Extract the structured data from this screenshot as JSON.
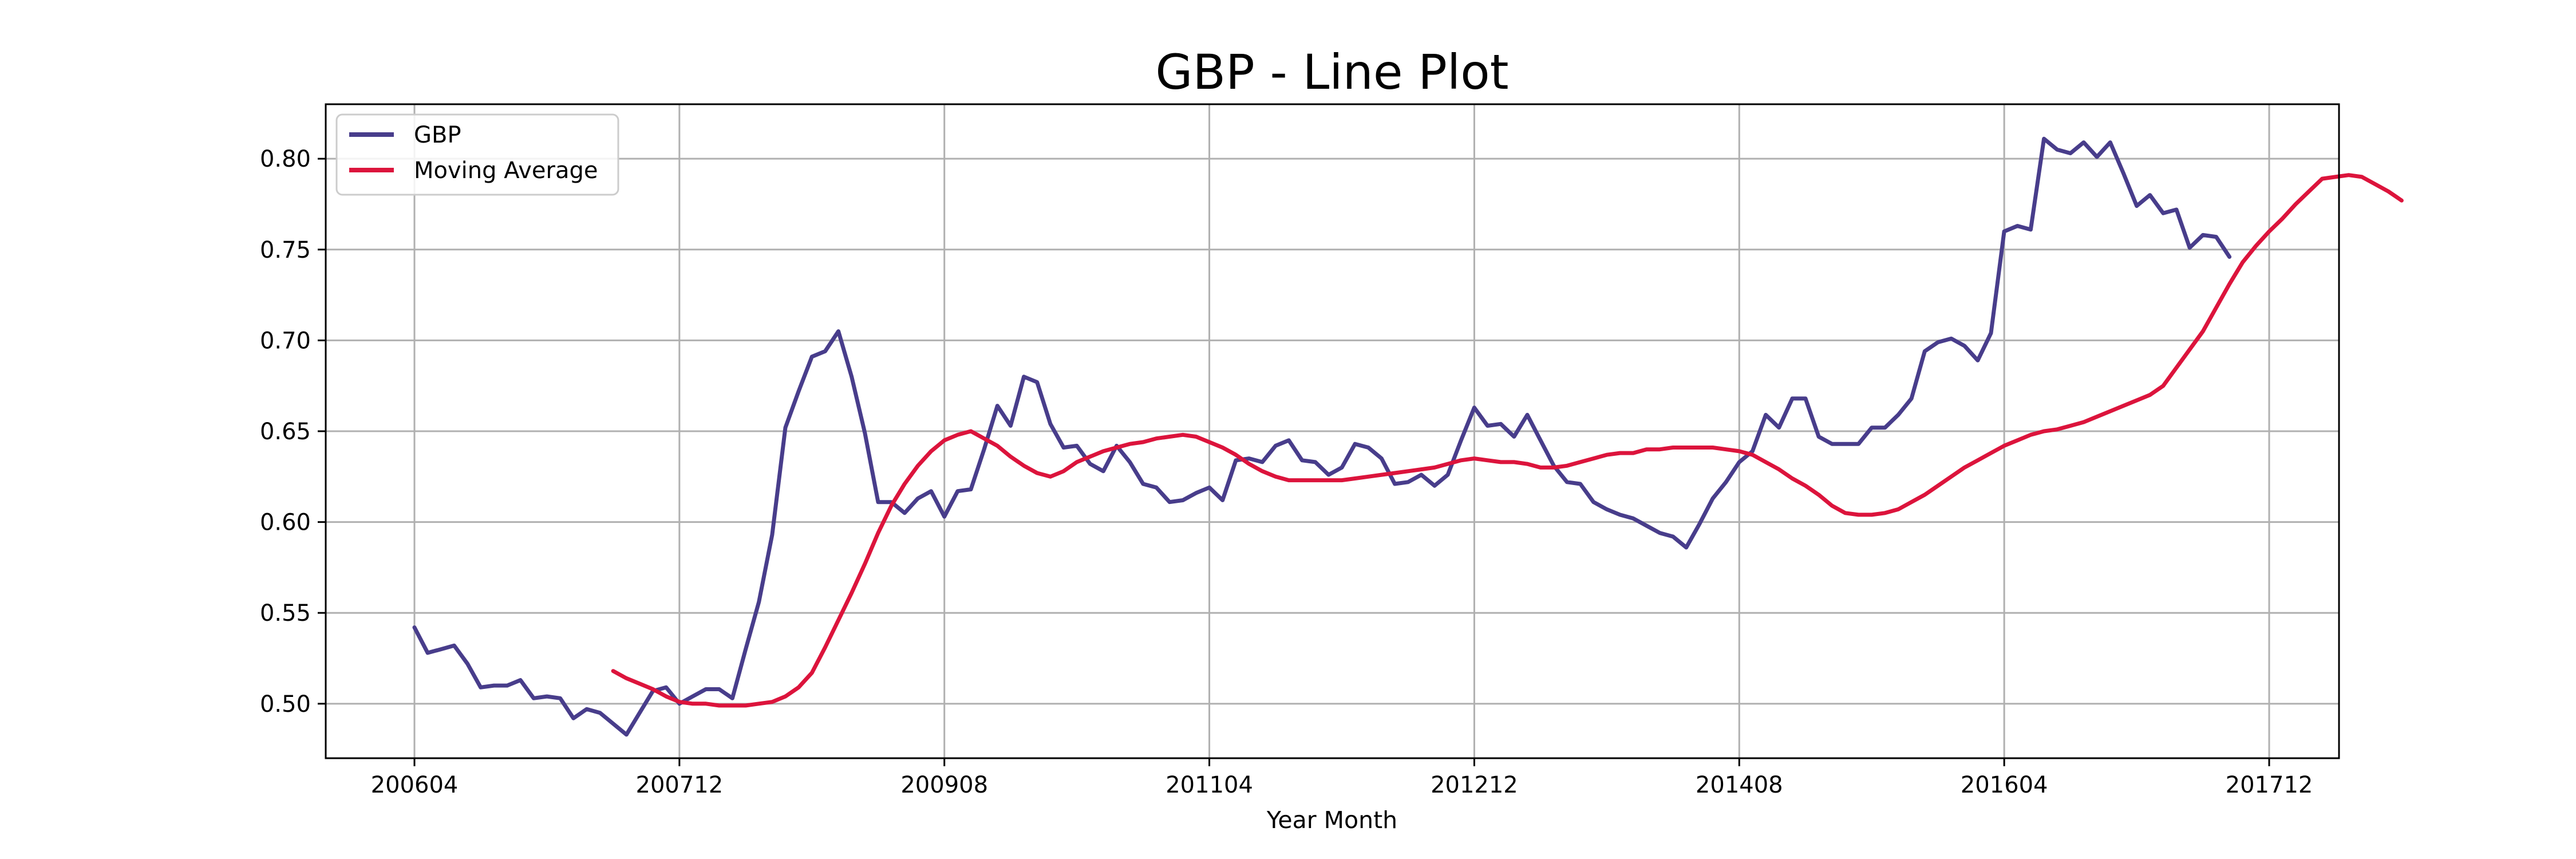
{
  "chart_data": {
    "type": "line",
    "title": "GBP - Line Plot",
    "xlabel": "Year Month",
    "ylabel": "",
    "x_tick_labels": [
      "200604",
      "200712",
      "200908",
      "201104",
      "201212",
      "201408",
      "201604",
      "201712"
    ],
    "x_start": "200604",
    "x_end": "201712",
    "ylim": [
      0.47,
      0.83
    ],
    "y_ticks": [
      0.5,
      0.55,
      0.6,
      0.65,
      0.7,
      0.75,
      0.8
    ],
    "y_tick_labels": [
      "0.50",
      "0.55",
      "0.60",
      "0.65",
      "0.70",
      "0.75",
      "0.80"
    ],
    "grid": true,
    "legend_position": "top-left",
    "series": [
      {
        "name": "GBP",
        "color": "#483d8b",
        "start": "200604",
        "values": [
          0.542,
          0.528,
          0.53,
          0.532,
          0.522,
          0.509,
          0.51,
          0.51,
          0.513,
          0.503,
          0.504,
          0.503,
          0.492,
          0.497,
          0.495,
          0.489,
          0.483,
          0.495,
          0.507,
          0.509,
          0.5,
          0.504,
          0.508,
          0.508,
          0.503,
          0.53,
          0.556,
          0.593,
          0.652,
          0.672,
          0.691,
          0.694,
          0.705,
          0.68,
          0.649,
          0.611,
          0.611,
          0.605,
          0.613,
          0.617,
          0.603,
          0.617,
          0.618,
          0.64,
          0.664,
          0.653,
          0.68,
          0.677,
          0.654,
          0.641,
          0.642,
          0.632,
          0.628,
          0.642,
          0.633,
          0.621,
          0.619,
          0.611,
          0.612,
          0.616,
          0.619,
          0.612,
          0.634,
          0.635,
          0.633,
          0.642,
          0.645,
          0.634,
          0.633,
          0.626,
          0.63,
          0.643,
          0.641,
          0.635,
          0.621,
          0.622,
          0.626,
          0.62,
          0.626,
          0.645,
          0.663,
          0.653,
          0.654,
          0.647,
          0.659,
          0.645,
          0.631,
          0.622,
          0.621,
          0.611,
          0.607,
          0.604,
          0.602,
          0.598,
          0.594,
          0.592,
          0.586,
          0.599,
          0.613,
          0.622,
          0.633,
          0.639,
          0.659,
          0.652,
          0.668,
          0.668,
          0.647,
          0.643,
          0.643,
          0.643,
          0.652,
          0.652,
          0.659,
          0.668,
          0.694,
          0.699,
          0.701,
          0.697,
          0.689,
          0.704,
          0.76,
          0.763,
          0.761,
          0.811,
          0.805,
          0.803,
          0.809,
          0.801,
          0.809,
          0.792,
          0.774,
          0.78,
          0.77,
          0.772,
          0.751,
          0.758,
          0.757,
          0.746
        ]
      },
      {
        "name": "Moving Average",
        "color": "#dc143c",
        "start": "200707",
        "values": [
          0.518,
          0.514,
          0.511,
          0.508,
          0.504,
          0.501,
          0.5,
          0.5,
          0.499,
          0.499,
          0.499,
          0.5,
          0.501,
          0.504,
          0.509,
          0.517,
          0.531,
          0.546,
          0.561,
          0.577,
          0.594,
          0.609,
          0.621,
          0.631,
          0.639,
          0.645,
          0.648,
          0.65,
          0.646,
          0.642,
          0.636,
          0.631,
          0.627,
          0.625,
          0.628,
          0.633,
          0.636,
          0.639,
          0.641,
          0.643,
          0.644,
          0.646,
          0.647,
          0.648,
          0.647,
          0.644,
          0.641,
          0.637,
          0.632,
          0.628,
          0.625,
          0.623,
          0.623,
          0.623,
          0.623,
          0.623,
          0.624,
          0.625,
          0.626,
          0.627,
          0.628,
          0.629,
          0.63,
          0.632,
          0.634,
          0.635,
          0.634,
          0.633,
          0.633,
          0.632,
          0.63,
          0.63,
          0.631,
          0.633,
          0.635,
          0.637,
          0.638,
          0.638,
          0.64,
          0.64,
          0.641,
          0.641,
          0.641,
          0.641,
          0.64,
          0.639,
          0.637,
          0.633,
          0.629,
          0.624,
          0.62,
          0.615,
          0.609,
          0.605,
          0.604,
          0.604,
          0.605,
          0.607,
          0.611,
          0.615,
          0.62,
          0.625,
          0.63,
          0.634,
          0.638,
          0.642,
          0.645,
          0.648,
          0.65,
          0.651,
          0.653,
          0.655,
          0.658,
          0.661,
          0.664,
          0.667,
          0.67,
          0.675,
          0.685,
          0.695,
          0.705,
          0.718,
          0.731,
          0.743,
          0.752,
          0.76,
          0.767,
          0.775,
          0.782,
          0.789,
          0.79,
          0.791,
          0.79,
          0.786,
          0.782,
          0.777
        ]
      }
    ]
  }
}
